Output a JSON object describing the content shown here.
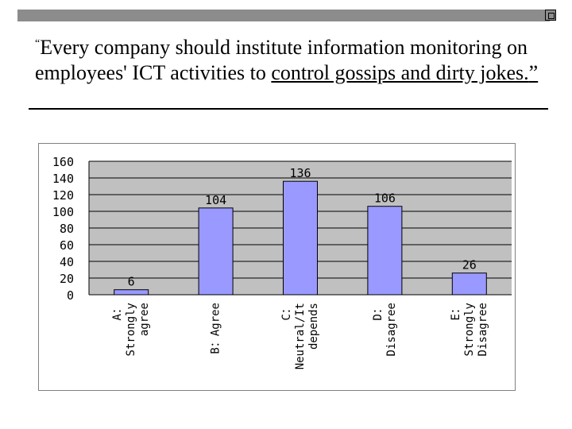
{
  "title": {
    "open_quote": "“",
    "main": "Every company should institute information monitoring on employees' ICT activities to ",
    "underlined": "control gossips and dirty jokes.",
    "close_quote": "”"
  },
  "colors": {
    "bar_fill": "#9999ff",
    "plot_background": "#c0c0c0",
    "top_bar": "#8c8c8c"
  },
  "chart_data": {
    "type": "bar",
    "categories": [
      [
        "A：",
        "Strongly",
        "agree"
      ],
      [
        "B：Agree"
      ],
      [
        "C：",
        "Neutral/It",
        "depends"
      ],
      [
        "D：",
        "Disagree"
      ],
      [
        "E：",
        "Strongly",
        "Disagree"
      ]
    ],
    "values": [
      6,
      104,
      136,
      106,
      26
    ],
    "ylim": [
      0,
      160
    ],
    "yticks": [
      160,
      140,
      120,
      100,
      80,
      60,
      40,
      20,
      0
    ],
    "grid": true,
    "legend": "none"
  }
}
